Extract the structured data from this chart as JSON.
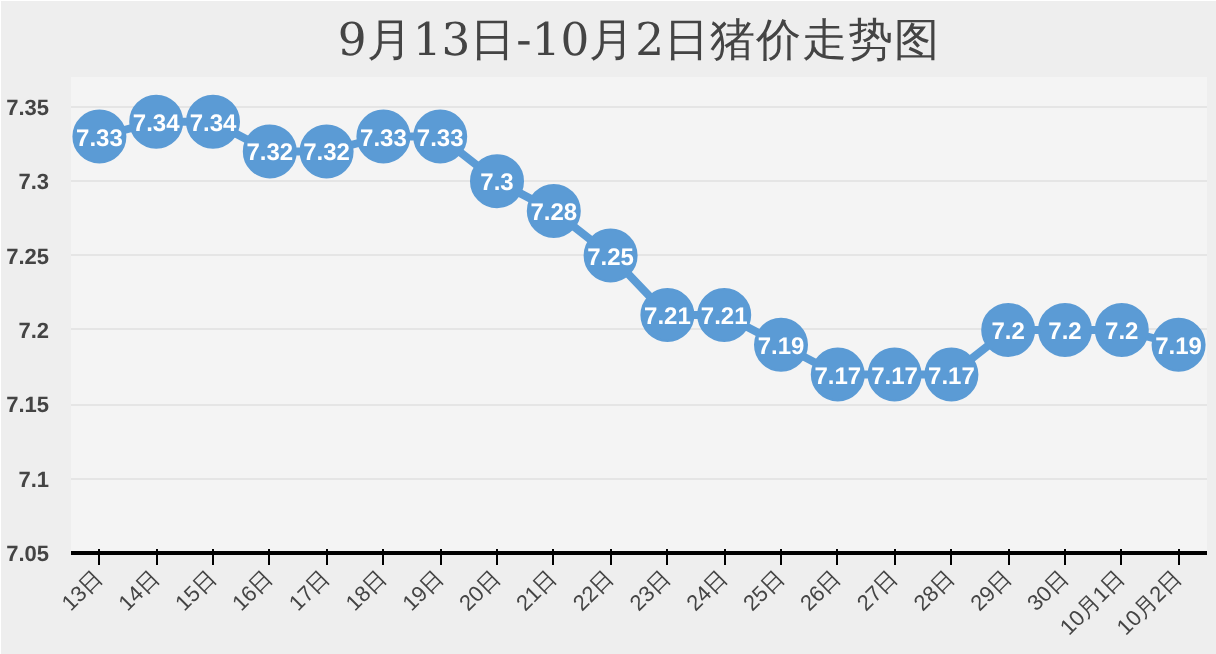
{
  "chart_data": {
    "type": "line",
    "title": "9月13日-10月2日猪价走势图",
    "categories": [
      "13日",
      "14日",
      "15日",
      "16日",
      "17日",
      "18日",
      "19日",
      "20日",
      "21日",
      "22日",
      "23日",
      "24日",
      "25日",
      "26日",
      "27日",
      "28日",
      "29日",
      "30日",
      "10月1日",
      "10月2日"
    ],
    "values": [
      7.33,
      7.34,
      7.34,
      7.32,
      7.32,
      7.33,
      7.33,
      7.3,
      7.28,
      7.25,
      7.21,
      7.21,
      7.19,
      7.17,
      7.17,
      7.17,
      7.2,
      7.2,
      7.2,
      7.19
    ],
    "color": "#5b9bd5",
    "ylim": [
      7.05,
      7.37
    ],
    "yticks": [
      7.05,
      {
        "value": 7.1,
        "label": "7.1"
      },
      7.15,
      {
        "value": 7.2,
        "label": "7.2"
      },
      7.25,
      {
        "value": 7.3,
        "label": "7.3"
      },
      7.35
    ],
    "grid": "y",
    "marker": "circle",
    "line_style": "solid",
    "data_labels": true
  }
}
